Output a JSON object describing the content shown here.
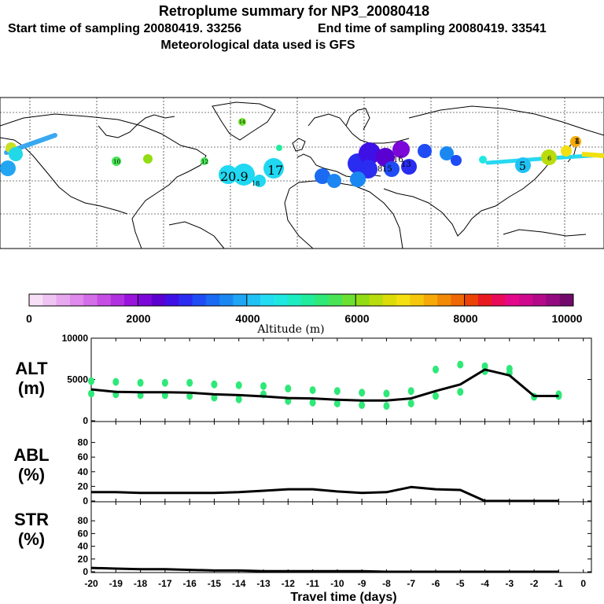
{
  "header": {
    "title": "Retroplume summary for NP3_20080418",
    "start_label": "Start time of sampling 20080419. 33256",
    "end_label": "End time of sampling 20080419. 33541",
    "met_label": "Meteorological data used is GFS"
  },
  "colorbar": {
    "colors": [
      "#f7e0f7",
      "#efc3f2",
      "#e8a8ef",
      "#df8aec",
      "#d46ee8",
      "#c64ee4",
      "#b130e0",
      "#9a14dc",
      "#7b08d8",
      "#5a00d0",
      "#3f10e6",
      "#2a2cf2",
      "#1f4cf4",
      "#1a6af2",
      "#1b88f2",
      "#1ea6f4",
      "#20c2f6",
      "#22dcf4",
      "#1ee8e0",
      "#1cecc2",
      "#20ec9c",
      "#2ee878",
      "#48e455",
      "#6ce030",
      "#92dc14",
      "#b8dc0c",
      "#dcdc08",
      "#f4e010",
      "#f6c80c",
      "#f6aa08",
      "#f28a06",
      "#ee6806",
      "#ec4208",
      "#e81a20",
      "#ea0a5a",
      "#e4088a",
      "#d0088e",
      "#b40a8a",
      "#940a80",
      "#720a6c"
    ],
    "tick_labels": [
      "0",
      "2000",
      "4000",
      "6000",
      "8000",
      "10000"
    ],
    "label": "Altitude (m)"
  },
  "map": {
    "labels": [
      "20.9",
      "17",
      "1",
      "4",
      "5",
      "8",
      "10",
      "14",
      "15",
      "16",
      "18",
      "12",
      "13",
      "6",
      "5",
      "4"
    ]
  },
  "panels": {
    "alt": {
      "label1": "ALT",
      "label2": "(m)"
    },
    "abl": {
      "label1": "ABL",
      "label2": "(%)"
    },
    "str": {
      "label1": "STR",
      "label2": "(%)"
    }
  },
  "xaxis": {
    "label": "Travel time (days)"
  },
  "chart_data": [
    {
      "type": "line",
      "name": "ALT",
      "x": [
        -20,
        -19,
        -18,
        -17,
        -16,
        -15,
        -14,
        -13,
        -12,
        -11,
        -10,
        -9,
        -8,
        -7,
        -6,
        -5,
        -4,
        -3,
        -2,
        -1
      ],
      "values": [
        3800,
        3500,
        3450,
        3450,
        3400,
        3200,
        3100,
        2950,
        2750,
        2700,
        2550,
        2450,
        2450,
        2700,
        3600,
        4400,
        6200,
        5500,
        3000,
        3000
      ],
      "scatter_x": [
        -20,
        -20,
        -19,
        -19,
        -18,
        -18,
        -17,
        -17,
        -16,
        -16,
        -15,
        -15,
        -14,
        -14,
        -13,
        -13,
        -12,
        -12,
        -11,
        -11,
        -10,
        -10,
        -9,
        -9,
        -8,
        -8,
        -7,
        -7,
        -6,
        -6,
        -5,
        -5,
        -4,
        -4,
        -3,
        -3,
        -2,
        -1,
        -1
      ],
      "scatter_y": [
        3300,
        4800,
        3200,
        4700,
        3100,
        4600,
        3100,
        4600,
        3000,
        4600,
        2800,
        4400,
        2600,
        4300,
        3200,
        4200,
        2400,
        3900,
        2200,
        3700,
        2100,
        3600,
        1900,
        3400,
        1800,
        3300,
        2100,
        3600,
        3000,
        6200,
        3500,
        6800,
        6000,
        6600,
        5800,
        6300,
        2900,
        3000,
        3200
      ],
      "yticks": [
        0,
        5000,
        10000
      ],
      "ylim": [
        0,
        10000
      ],
      "xlim": [
        -20,
        0
      ]
    },
    {
      "type": "line",
      "name": "ABL",
      "x": [
        -20,
        -19,
        -18,
        -17,
        -16,
        -15,
        -14,
        -13,
        -12,
        -11,
        -10,
        -9,
        -8,
        -7,
        -6,
        -5,
        -4,
        -3,
        -2,
        -1
      ],
      "values": [
        12,
        12,
        11,
        11,
        11,
        11,
        12,
        14,
        16,
        16,
        13,
        11,
        12,
        19,
        16,
        15,
        0,
        0,
        0,
        0
      ],
      "yticks": [
        0,
        20,
        40,
        60,
        80
      ],
      "ylim": [
        0,
        100
      ],
      "xlim": [
        -20,
        0
      ]
    },
    {
      "type": "line",
      "name": "STR",
      "x": [
        -20,
        -19,
        -18,
        -17,
        -16,
        -15,
        -14,
        -13,
        -12,
        -11,
        -10,
        -9,
        -8,
        -7,
        -6,
        -5,
        -4,
        -3,
        -2,
        -1
      ],
      "values": [
        6,
        5,
        4,
        4,
        3,
        2,
        2,
        1,
        1,
        1,
        1,
        1,
        0,
        0,
        0,
        0,
        0,
        0,
        0,
        0
      ],
      "yticks": [
        0,
        20,
        40,
        60,
        80
      ],
      "ylim": [
        0,
        100
      ],
      "xlim": [
        -20,
        0
      ]
    }
  ],
  "xticks": [
    "-20",
    "-19",
    "-18",
    "-17",
    "-16",
    "-15",
    "-14",
    "-13",
    "-12",
    "-11",
    "-10",
    "-9",
    "-8",
    "-7",
    "-6",
    "-5",
    "-4",
    "-3",
    "-2",
    "-1",
    "0"
  ]
}
